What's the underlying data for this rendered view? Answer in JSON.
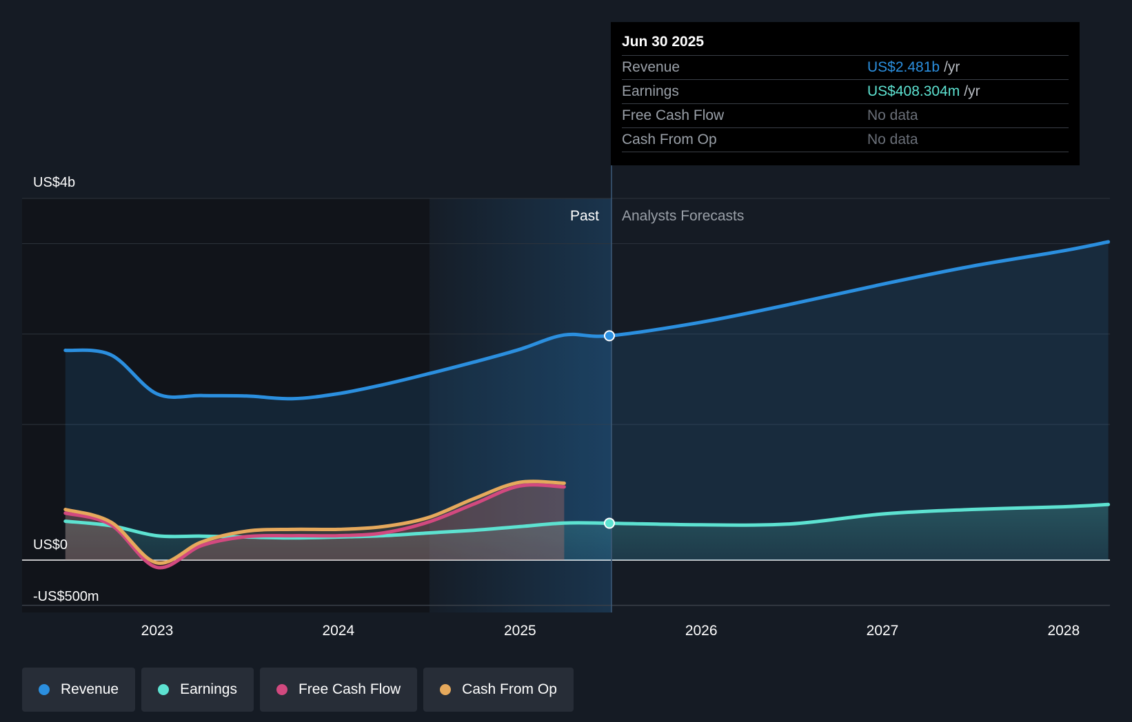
{
  "chart_data": {
    "type": "line",
    "x_ticks": [
      "2023",
      "2024",
      "2025",
      "2026",
      "2027",
      "2028"
    ],
    "y_labels": [
      "US$4b",
      "US$0",
      "-US$500m"
    ],
    "ylim": [
      -500,
      4000
    ],
    "y_unit": "US$ millions",
    "grid": true,
    "regions": {
      "past_label": "Past",
      "forecast_label": "Analysts Forecasts",
      "divider": "2025-06-30"
    },
    "series": [
      {
        "name": "Revenue",
        "color": "#2b8fdf",
        "x": [
          "2022-06-30",
          "2022-09-30",
          "2022-12-31",
          "2023-03-31",
          "2023-06-30",
          "2023-09-30",
          "2023-12-31",
          "2024-03-31",
          "2024-06-30",
          "2024-09-30",
          "2024-12-31",
          "2025-03-31",
          "2025-06-30",
          "2025-12-31",
          "2026-06-30",
          "2026-12-31",
          "2027-06-30",
          "2027-12-31",
          "2028-03-31"
        ],
        "values": [
          2320,
          2270,
          1840,
          1820,
          1815,
          1785,
          1840,
          1940,
          2060,
          2190,
          2330,
          2490,
          2481,
          2630,
          2830,
          3050,
          3250,
          3420,
          3520
        ]
      },
      {
        "name": "Earnings",
        "color": "#5de2d1",
        "x": [
          "2022-06-30",
          "2022-09-30",
          "2022-12-31",
          "2023-03-31",
          "2023-06-30",
          "2023-09-30",
          "2023-12-31",
          "2024-03-31",
          "2024-06-30",
          "2024-09-30",
          "2024-12-31",
          "2025-03-31",
          "2025-06-30",
          "2025-12-31",
          "2026-06-30",
          "2026-12-31",
          "2027-06-30",
          "2027-12-31",
          "2028-03-31"
        ],
        "values": [
          430,
          380,
          270,
          265,
          255,
          245,
          255,
          270,
          300,
          330,
          370,
          410,
          408,
          390,
          400,
          510,
          560,
          590,
          615
        ]
      },
      {
        "name": "Free Cash Flow",
        "color": "#d2497f",
        "x": [
          "2022-06-30",
          "2022-09-30",
          "2022-12-31",
          "2023-03-31",
          "2023-06-30",
          "2023-09-30",
          "2023-12-31",
          "2024-03-31",
          "2024-06-30",
          "2024-09-30",
          "2024-12-31",
          "2025-03-31"
        ],
        "values": [
          520,
          390,
          -80,
          160,
          260,
          270,
          270,
          300,
          420,
          620,
          820,
          810
        ]
      },
      {
        "name": "Cash From Op",
        "color": "#e6a95c",
        "x": [
          "2022-06-30",
          "2022-09-30",
          "2022-12-31",
          "2023-03-31",
          "2023-06-30",
          "2023-09-30",
          "2023-12-31",
          "2024-03-31",
          "2024-06-30",
          "2024-09-30",
          "2024-12-31",
          "2025-03-31"
        ],
        "values": [
          560,
          420,
          -30,
          200,
          320,
          340,
          340,
          370,
          470,
          680,
          860,
          850
        ]
      }
    ]
  },
  "tooltip": {
    "date": "Jun 30 2025",
    "unit": "/yr",
    "rows": [
      {
        "label": "Revenue",
        "value": "US$2.481b",
        "color": "#2b8fdf"
      },
      {
        "label": "Earnings",
        "value": "US$408.304m",
        "color": "#5de2d1"
      },
      {
        "label": "Free Cash Flow",
        "value": "No data",
        "color": "#6b7079"
      },
      {
        "label": "Cash From Op",
        "value": "No data",
        "color": "#6b7079"
      }
    ]
  },
  "legend": [
    {
      "label": "Revenue",
      "color": "#2b8fdf"
    },
    {
      "label": "Earnings",
      "color": "#5de2d1"
    },
    {
      "label": "Free Cash Flow",
      "color": "#d2497f"
    },
    {
      "label": "Cash From Op",
      "color": "#e6a95c"
    }
  ]
}
